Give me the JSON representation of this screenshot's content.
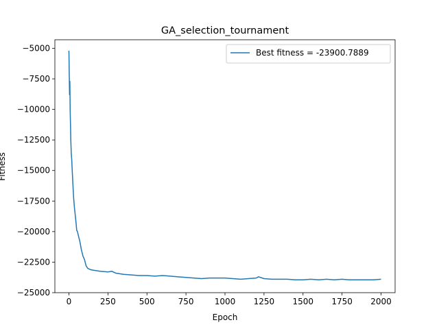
{
  "chart_data": {
    "type": "line",
    "title": "GA_selection_tournament",
    "xlabel": "Epoch",
    "ylabel": "Fitness",
    "xlim": [
      -90,
      2090
    ],
    "ylim": [
      -25000,
      -4300
    ],
    "xticks": [
      0,
      250,
      500,
      750,
      1000,
      1250,
      1500,
      1750,
      2000
    ],
    "yticks": [
      -5000,
      -7500,
      -10000,
      -12500,
      -15000,
      -17500,
      -20000,
      -22500,
      -25000
    ],
    "xtick_labels": [
      "0",
      "250",
      "500",
      "750",
      "1000",
      "1250",
      "1500",
      "1750",
      "2000"
    ],
    "ytick_labels": [
      "−5000",
      "−7500",
      "−10000",
      "−12500",
      "−15000",
      "−17500",
      "−20000",
      "−22500",
      "−25000"
    ],
    "grid": false,
    "legend_position": "top-right",
    "series": [
      {
        "name": "Best fitness = -23900.7889",
        "color": "#1f77b4",
        "x": [
          0,
          2,
          4,
          6,
          8,
          10,
          12,
          15,
          18,
          20,
          25,
          30,
          35,
          40,
          45,
          50,
          55,
          60,
          70,
          80,
          90,
          100,
          110,
          120,
          135,
          150,
          175,
          200,
          250,
          275,
          300,
          350,
          400,
          450,
          500,
          550,
          600,
          650,
          700,
          750,
          800,
          850,
          900,
          950,
          1000,
          1050,
          1100,
          1150,
          1200,
          1215,
          1250,
          1300,
          1350,
          1400,
          1450,
          1500,
          1550,
          1600,
          1650,
          1700,
          1750,
          1800,
          1850,
          1900,
          1950,
          2000
        ],
        "values": [
          -5200,
          -7000,
          -8800,
          -7700,
          -10100,
          -11200,
          -12500,
          -13600,
          -14100,
          -14700,
          -16000,
          -17200,
          -18000,
          -18600,
          -19200,
          -19900,
          -20000,
          -20300,
          -20800,
          -21500,
          -22000,
          -22300,
          -22800,
          -23000,
          -23100,
          -23150,
          -23200,
          -23250,
          -23300,
          -23250,
          -23400,
          -23500,
          -23550,
          -23600,
          -23600,
          -23650,
          -23600,
          -23650,
          -23700,
          -23750,
          -23800,
          -23850,
          -23800,
          -23800,
          -23800,
          -23850,
          -23900,
          -23850,
          -23800,
          -23700,
          -23850,
          -23900,
          -23900,
          -23900,
          -23950,
          -23950,
          -23900,
          -23950,
          -23900,
          -23950,
          -23900,
          -23950,
          -23950,
          -23950,
          -23950,
          -23900
        ]
      }
    ]
  }
}
